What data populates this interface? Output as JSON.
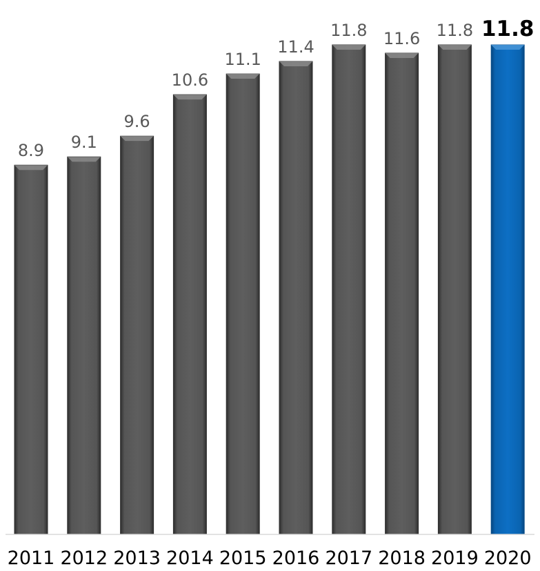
{
  "colors": {
    "bar": "#595959",
    "bar_edge": "#2f2f2f",
    "bar_highlight": "#0d6bbd",
    "bar_highlight_edge": "#0a4f8c",
    "value_label": "#595959",
    "highlight_label": "#000000",
    "axis_line": "#d9d9d9"
  },
  "chart_data": {
    "type": "bar",
    "categories": [
      "2011",
      "2012",
      "2013",
      "2014",
      "2015",
      "2016",
      "2017",
      "2018",
      "2019",
      "2020"
    ],
    "values": [
      8.9,
      9.1,
      9.6,
      10.6,
      11.1,
      11.4,
      11.8,
      11.6,
      11.8,
      11.8
    ],
    "value_labels": [
      "8.9",
      "9.1",
      "9.6",
      "10.6",
      "11.1",
      "11.4",
      "11.8",
      "11.6",
      "11.8",
      "11.8"
    ],
    "highlighted_category": "2020",
    "title": "",
    "xlabel": "",
    "ylabel": "",
    "ylim": [
      0,
      11.8
    ],
    "grid": false,
    "legend": "none"
  }
}
